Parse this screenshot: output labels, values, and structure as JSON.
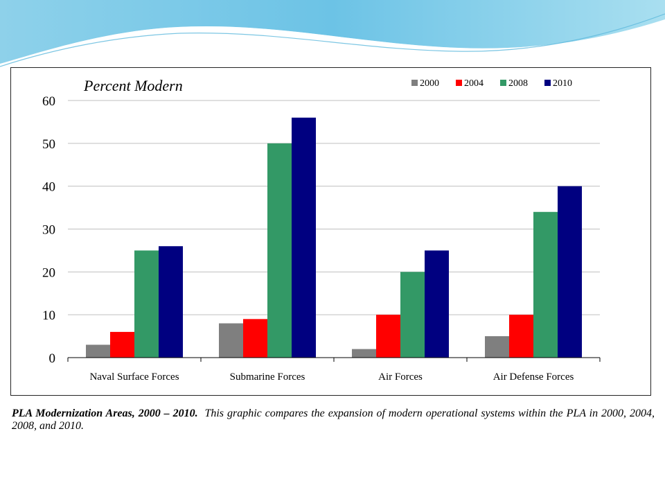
{
  "chart_data": {
    "type": "bar",
    "title": "Percent Modern",
    "categories": [
      "Naval Surface Forces",
      "Submarine Forces",
      "Air Forces",
      "Air Defense Forces"
    ],
    "series": [
      {
        "name": "2000",
        "color": "#7f7f7f",
        "values": [
          3,
          8,
          2,
          5
        ]
      },
      {
        "name": "2004",
        "color": "#ff0000",
        "values": [
          6,
          9,
          10,
          10
        ]
      },
      {
        "name": "2008",
        "color": "#339966",
        "values": [
          25,
          50,
          20,
          34
        ]
      },
      {
        "name": "2010",
        "color": "#000080",
        "values": [
          26,
          56,
          25,
          40
        ]
      }
    ],
    "ylim": [
      0,
      60
    ],
    "yticks": [
      "0",
      "10",
      "20",
      "30",
      "40",
      "50",
      "60"
    ],
    "grid": true,
    "legend_position": "top-right",
    "xlabel": "",
    "ylabel": ""
  },
  "caption": {
    "title": "PLA Modernization Areas, 2000 – 2010.",
    "text": "This graphic compares the expansion of modern operational systems within the PLA in 2000, 2004, 2008, and 2010."
  }
}
